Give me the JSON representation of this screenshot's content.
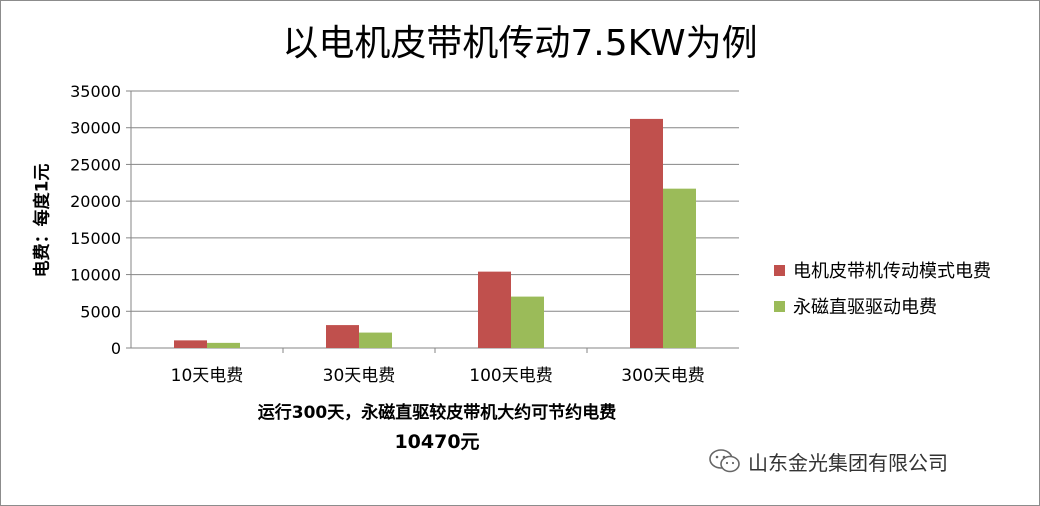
{
  "chart_data": {
    "type": "bar",
    "title": "以电机皮带机传动7.5KW为例",
    "ylabel": "电费：每度1元",
    "xlabel": "",
    "categories": [
      "10天电费",
      "30天电费",
      "100天电费",
      "300天电费"
    ],
    "series": [
      {
        "name": "电机皮带机传动模式电费",
        "color": "#c0504d",
        "values": [
          1040,
          3120,
          10400,
          31200
        ]
      },
      {
        "name": "永磁直驱驱动电费",
        "color": "#9bbb59",
        "values": [
          700,
          2100,
          7000,
          21700
        ]
      }
    ],
    "ylim": [
      0,
      35000
    ],
    "yticks": [
      "0",
      "5000",
      "10000",
      "15000",
      "20000",
      "25000",
      "30000",
      "35000"
    ],
    "grid": true,
    "legend": "right"
  },
  "notes": {
    "line1": "运行300天，永磁直驱较皮带机大约可节约电费",
    "line2": "10470元"
  },
  "brand": {
    "label": "山东金光集团有限公司",
    "icon": "wechat-icon"
  }
}
